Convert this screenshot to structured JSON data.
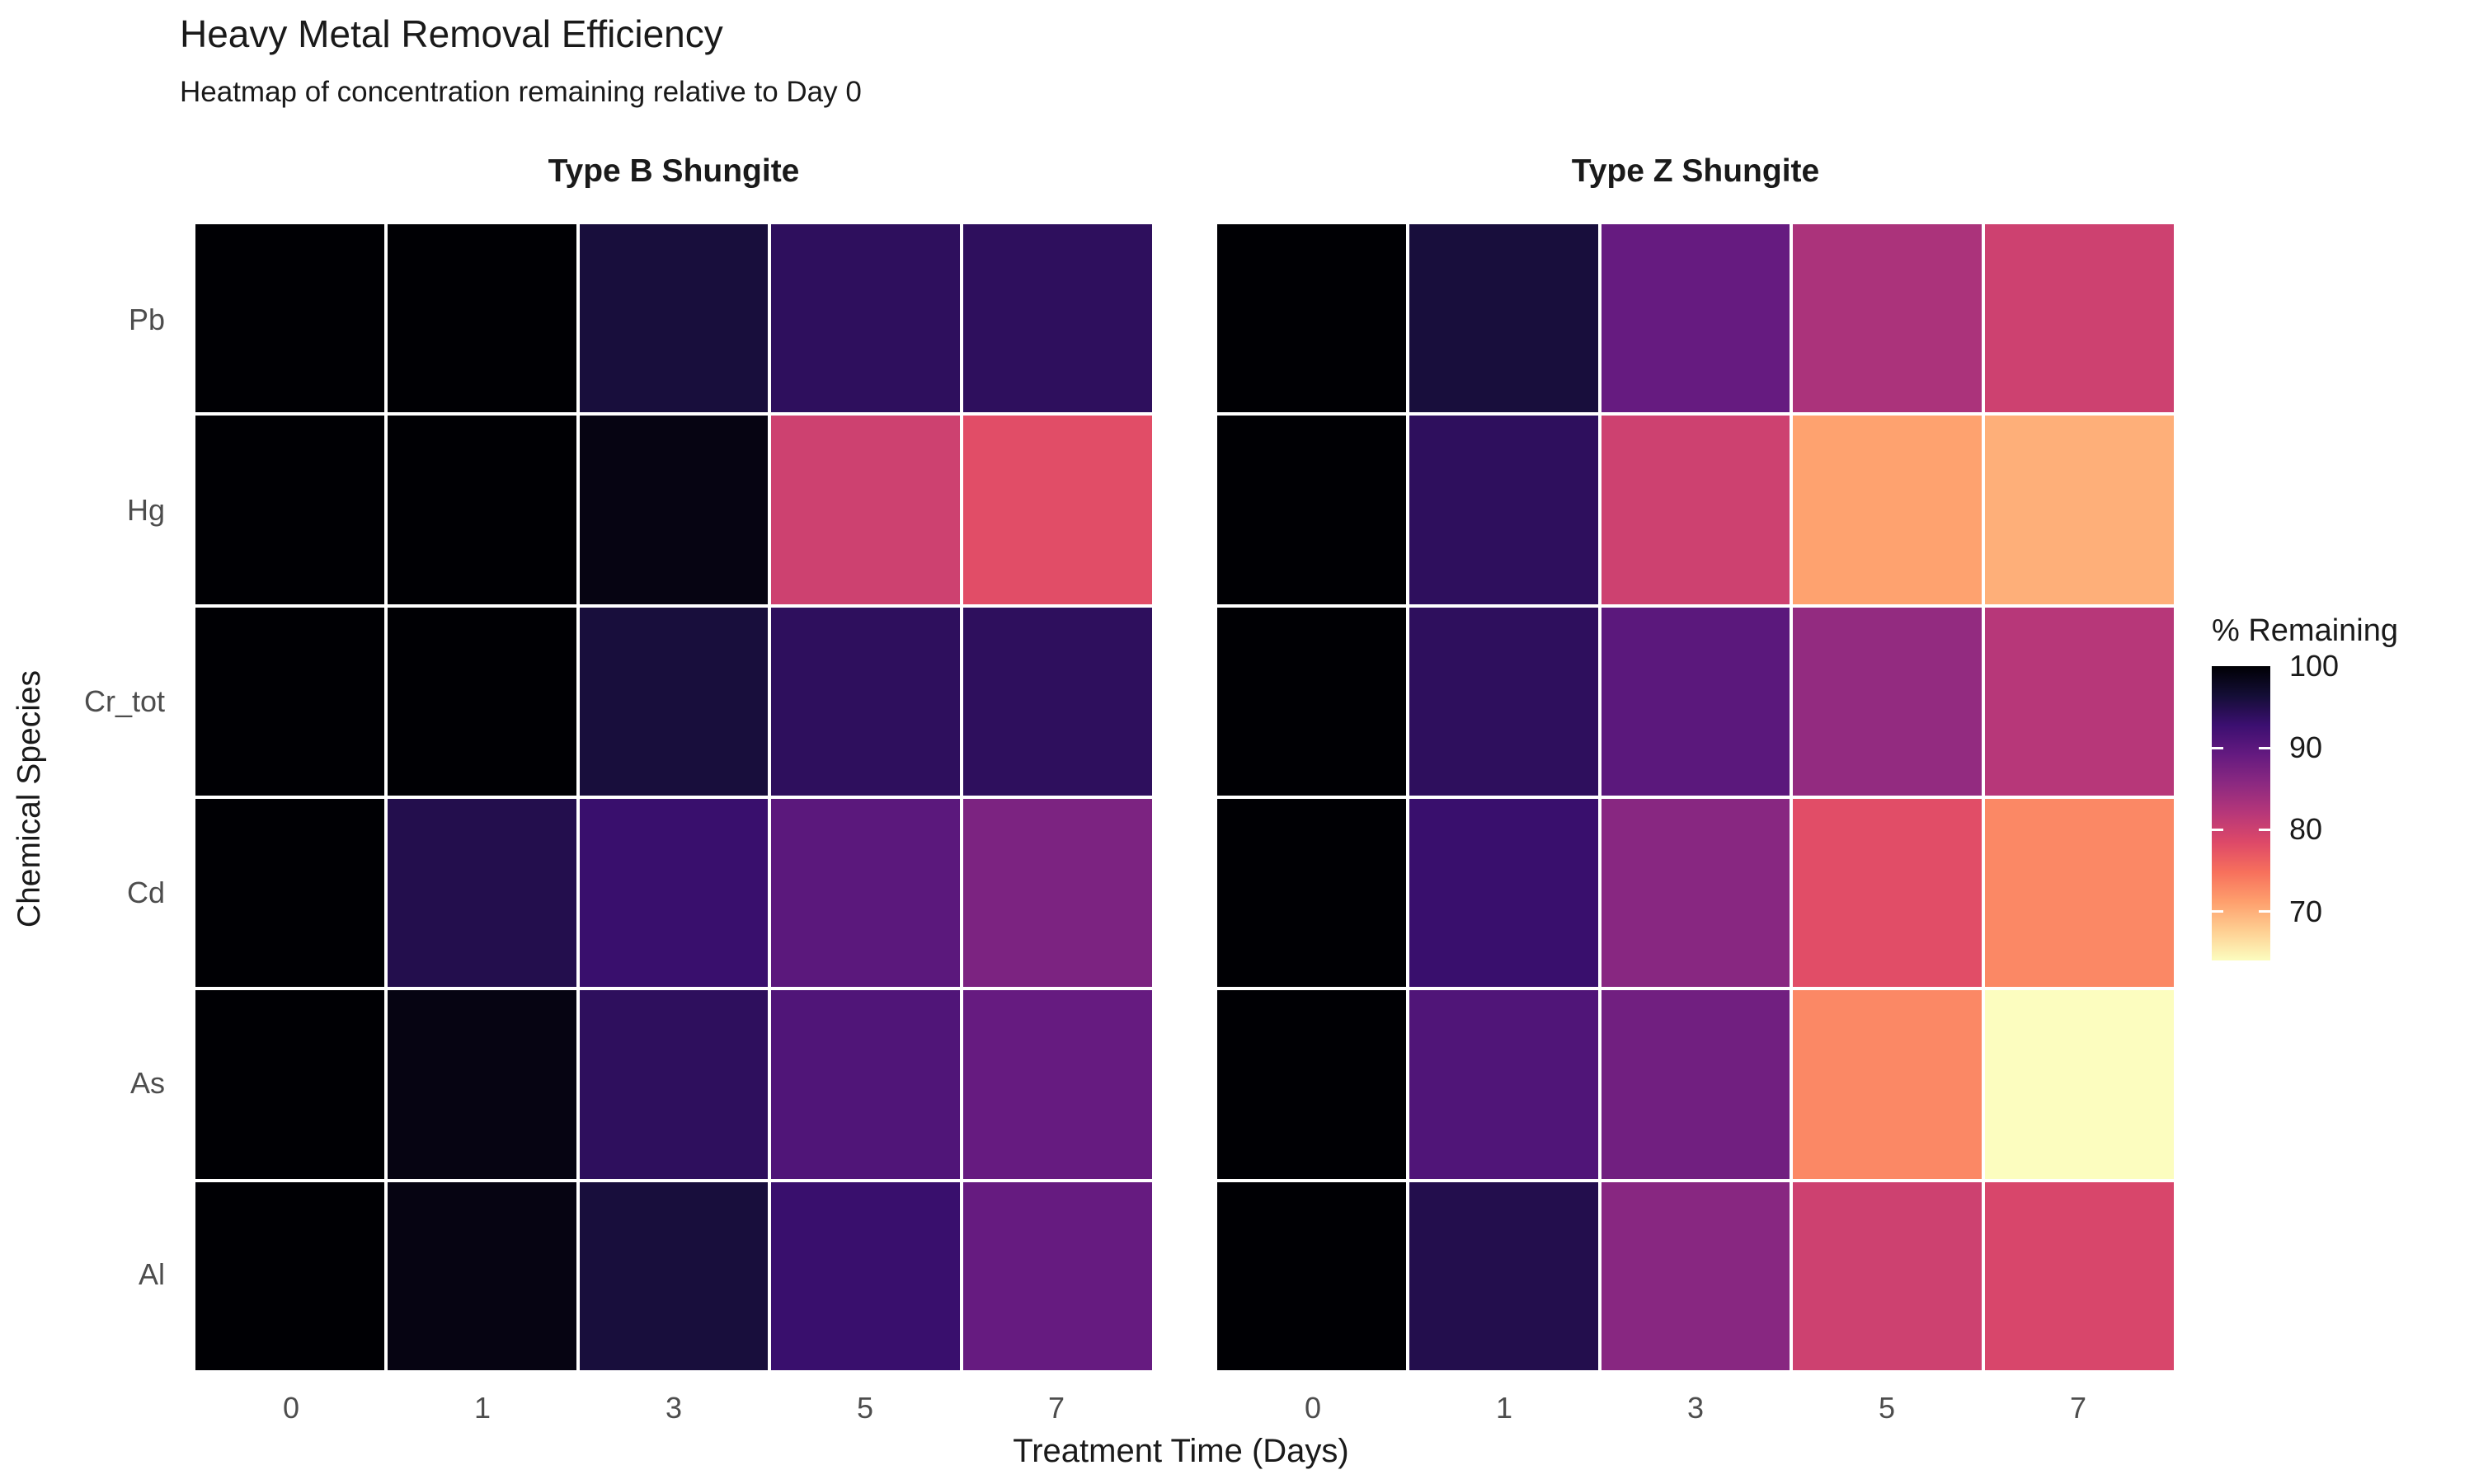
{
  "chart_data": {
    "type": "heatmap",
    "title": "Heavy Metal Removal Efficiency",
    "subtitle": "Heatmap of concentration remaining relative to Day 0",
    "xlabel": "Treatment Time (Days)",
    "ylabel": "Chemical Species",
    "x_categories": [
      "0",
      "1",
      "3",
      "5",
      "7"
    ],
    "y_categories": [
      "Pb",
      "Hg",
      "Cr_tot",
      "Cd",
      "As",
      "Al"
    ],
    "facets": [
      {
        "name": "Type B Shungite",
        "values": [
          [
            100,
            100,
            96,
            94,
            94
          ],
          [
            100,
            100,
            99,
            80,
            78
          ],
          [
            100,
            100,
            96,
            94,
            94
          ],
          [
            100,
            95,
            93,
            90,
            87
          ],
          [
            100,
            99,
            94,
            91,
            89
          ],
          [
            100,
            99,
            96,
            93,
            89
          ]
        ]
      },
      {
        "name": "Type Z Shungite",
        "values": [
          [
            100,
            96,
            89,
            83,
            80
          ],
          [
            100,
            94,
            80,
            71,
            70
          ],
          [
            100,
            94,
            90,
            85,
            82
          ],
          [
            100,
            93,
            86,
            78,
            73
          ],
          [
            100,
            91,
            88,
            73,
            64
          ],
          [
            100,
            95,
            86,
            80,
            79
          ]
        ]
      }
    ],
    "legend": {
      "title": "% Remaining",
      "ticks": [
        100,
        90,
        80,
        70
      ],
      "domain": [
        64,
        100
      ],
      "position": "right"
    },
    "colormap": {
      "name": "magma-reversed",
      "stops": [
        "#000004",
        "#140e36",
        "#3b0f70",
        "#641a80",
        "#8c2981",
        "#b73779",
        "#de4968",
        "#f7705c",
        "#fe9f6d",
        "#fecf92",
        "#fcfdbf"
      ]
    },
    "grid": false,
    "cell_border_color": "#ffffff",
    "colors": {
      "axis_text": "#4d4d4d",
      "title_text": "#1a1a1a",
      "background": "#ffffff"
    }
  }
}
